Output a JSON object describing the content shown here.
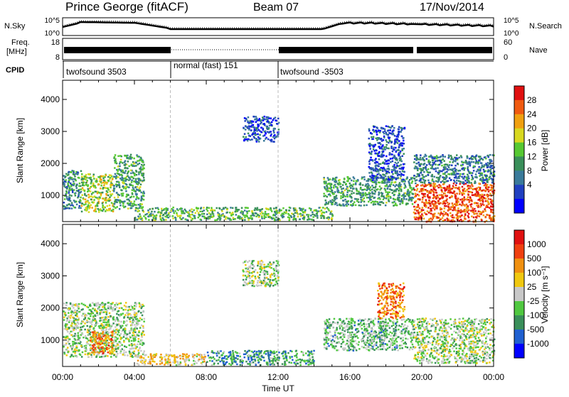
{
  "header": {
    "station": "Prince George (fitACF)",
    "beam": "Beam 07",
    "date": "17/Nov/2014"
  },
  "noise_panel": {
    "left_label": "N.Sky",
    "right_label": "N.Search",
    "y_ticks": [
      "10^5",
      "10^0"
    ]
  },
  "freq_panel": {
    "left_label_1": "Freq.",
    "left_label_2": "[MHz]",
    "right_label": "Nave",
    "left_ticks": [
      "18",
      "8"
    ],
    "right_ticks": [
      "60",
      "0"
    ]
  },
  "cpid_panel": {
    "label": "CPID",
    "segments": [
      "twofsound 3503",
      "normal (fast) 151",
      "twofsound -3503"
    ]
  },
  "chart_data": [
    {
      "type": "heatmap",
      "name": "power",
      "ylabel": "Slant Range [km]",
      "y_ticks": [
        1000,
        2000,
        3000,
        4000
      ],
      "ylim": [
        180,
        4600
      ],
      "colorbar_label": "Power [dB]",
      "colorbar_ticks": [
        "28",
        "24",
        "20",
        "16",
        "12",
        "8",
        "4"
      ],
      "colors": [
        "#0000ff",
        "#2040c0",
        "#3a7a9a",
        "#3a8f5a",
        "#56c832",
        "#d8d820",
        "#f0a010",
        "#f05a10",
        "#e01010"
      ],
      "regions": [
        {
          "t": [
            0.0,
            1.0
          ],
          "r": [
            600,
            1800
          ],
          "level": 0.35
        },
        {
          "t": [
            1.0,
            2.8
          ],
          "r": [
            500,
            1700
          ],
          "level": 0.55
        },
        {
          "t": [
            2.8,
            4.5
          ],
          "r": [
            600,
            2300
          ],
          "level": 0.4
        },
        {
          "t": [
            4.0,
            15.0
          ],
          "r": [
            250,
            650
          ],
          "level": 0.45
        },
        {
          "t": [
            10.0,
            12.0
          ],
          "r": [
            2700,
            3500
          ],
          "level": 0.2
        },
        {
          "t": [
            14.5,
            19.5
          ],
          "r": [
            700,
            1600
          ],
          "level": 0.4
        },
        {
          "t": [
            17.0,
            19.0
          ],
          "r": [
            1500,
            3200
          ],
          "level": 0.2
        },
        {
          "t": [
            19.5,
            24.0
          ],
          "r": [
            200,
            1400
          ],
          "level": 0.85
        },
        {
          "t": [
            19.5,
            24.0
          ],
          "r": [
            1400,
            2300
          ],
          "level": 0.3
        }
      ]
    },
    {
      "type": "heatmap",
      "name": "velocity",
      "xlabel": "Time UT",
      "ylabel": "Slant Range [km]",
      "x_ticks": [
        "00:00",
        "04:00",
        "08:00",
        "12:00",
        "16:00",
        "20:00",
        "00:00"
      ],
      "y_ticks": [
        1000,
        2000,
        3000,
        4000
      ],
      "ylim": [
        180,
        4600
      ],
      "colorbar_label": "Velocity [m s⁻¹]",
      "colorbar_ticks": [
        "1000",
        "500",
        "100",
        "25",
        "-25",
        "-100",
        "-500",
        "-1000"
      ],
      "colors": [
        "#0000ff",
        "#2060d0",
        "#3a8f5a",
        "#50c840",
        "#c8c8c8",
        "#f0c810",
        "#f09010",
        "#f04010",
        "#e01010"
      ],
      "regions": [
        {
          "t": [
            0.0,
            4.5
          ],
          "r": [
            500,
            2200
          ],
          "level": 0.45
        },
        {
          "t": [
            1.5,
            2.8
          ],
          "r": [
            600,
            1300
          ],
          "level": 0.72
        },
        {
          "t": [
            4.0,
            8.0
          ],
          "r": [
            250,
            600
          ],
          "level": 0.6
        },
        {
          "t": [
            8.0,
            14.0
          ],
          "r": [
            250,
            700
          ],
          "level": 0.3
        },
        {
          "t": [
            10.0,
            12.0
          ],
          "r": [
            2700,
            3500
          ],
          "level": 0.45
        },
        {
          "t": [
            14.5,
            19.5
          ],
          "r": [
            700,
            1700
          ],
          "level": 0.38
        },
        {
          "t": [
            17.5,
            19.0
          ],
          "r": [
            1700,
            2800
          ],
          "level": 0.75
        },
        {
          "t": [
            19.5,
            24.0
          ],
          "r": [
            300,
            1700
          ],
          "level": 0.45
        }
      ]
    }
  ]
}
